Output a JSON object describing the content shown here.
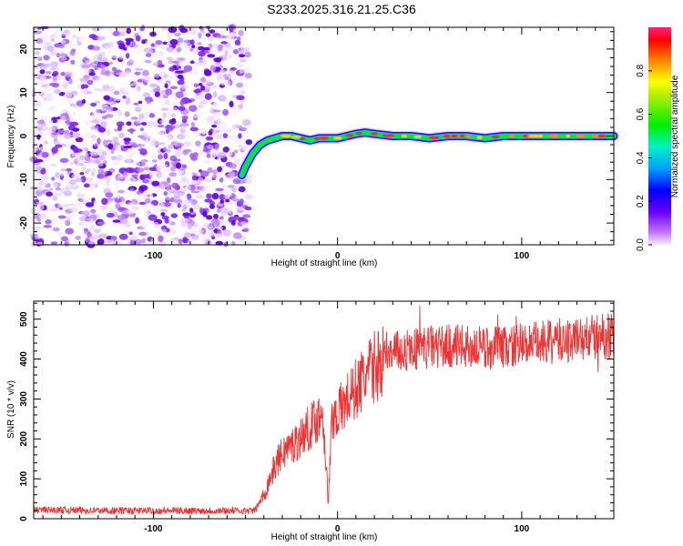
{
  "title": "S233.2025.316.21.25.C36",
  "colors": {
    "line": "#ee3333",
    "axis": "#000000",
    "noise": "#9b59e0"
  },
  "chart_data": [
    {
      "type": "heatmap",
      "xlabel": "Height of straight line (km)",
      "ylabel": "Frequency (Hz)",
      "xlim": [
        -165,
        150
      ],
      "ylim": [
        -25,
        25
      ],
      "xticks": [
        -100,
        0,
        100
      ],
      "yticks": [
        -20,
        -10,
        0,
        10,
        20
      ],
      "noise_region_x": [
        -165,
        -48
      ],
      "ridge": {
        "x": [
          -52,
          -50,
          -46,
          -42,
          -38,
          -34,
          -30,
          -25,
          -20,
          -15,
          -10,
          -5,
          0,
          5,
          10,
          15,
          20,
          30,
          40,
          50,
          60,
          70,
          80,
          90,
          100,
          110,
          120,
          130,
          140,
          150
        ],
        "freq": [
          -9,
          -7,
          -4,
          -2,
          -1,
          -0.5,
          0,
          0,
          -0.5,
          -1,
          -0.5,
          -0.5,
          -0.5,
          0,
          0.5,
          0.8,
          0.5,
          0,
          0,
          -0.5,
          0,
          0,
          -0.5,
          0,
          0,
          0,
          0,
          0,
          0,
          0
        ]
      },
      "colorbar": {
        "label": "Normalized spectral amplitude",
        "ticks": [
          0.0,
          0.2,
          0.4,
          0.6,
          0.8
        ],
        "tick_labels": [
          "0.0",
          "0.2",
          "0.4",
          "0.6",
          "0.8"
        ],
        "range": [
          0,
          1
        ]
      }
    },
    {
      "type": "line",
      "xlabel": "Height of straight line (km)",
      "ylabel": "SNR (10 * v/v)",
      "xlim": [
        -165,
        150
      ],
      "ylim": [
        0,
        545
      ],
      "xticks": [
        -100,
        0,
        100
      ],
      "yticks": [
        0,
        100,
        200,
        300,
        400,
        500
      ],
      "series": [
        {
          "name": "SNR",
          "x": [
            -165,
            -140,
            -120,
            -100,
            -80,
            -60,
            -45,
            -40,
            -36,
            -32,
            -28,
            -24,
            -20,
            -16,
            -12,
            -8,
            -5,
            -3,
            0,
            5,
            10,
            15,
            20,
            25,
            30,
            40,
            50,
            60,
            70,
            80,
            90,
            100,
            110,
            120,
            130,
            140,
            150
          ],
          "y": [
            22,
            21,
            20,
            20,
            20,
            20,
            20,
            60,
            110,
            150,
            175,
            185,
            205,
            225,
            245,
            270,
            40,
            255,
            265,
            295,
            325,
            355,
            380,
            400,
            415,
            425,
            430,
            432,
            430,
            428,
            430,
            435,
            440,
            445,
            450,
            455,
            460
          ]
        }
      ]
    }
  ]
}
